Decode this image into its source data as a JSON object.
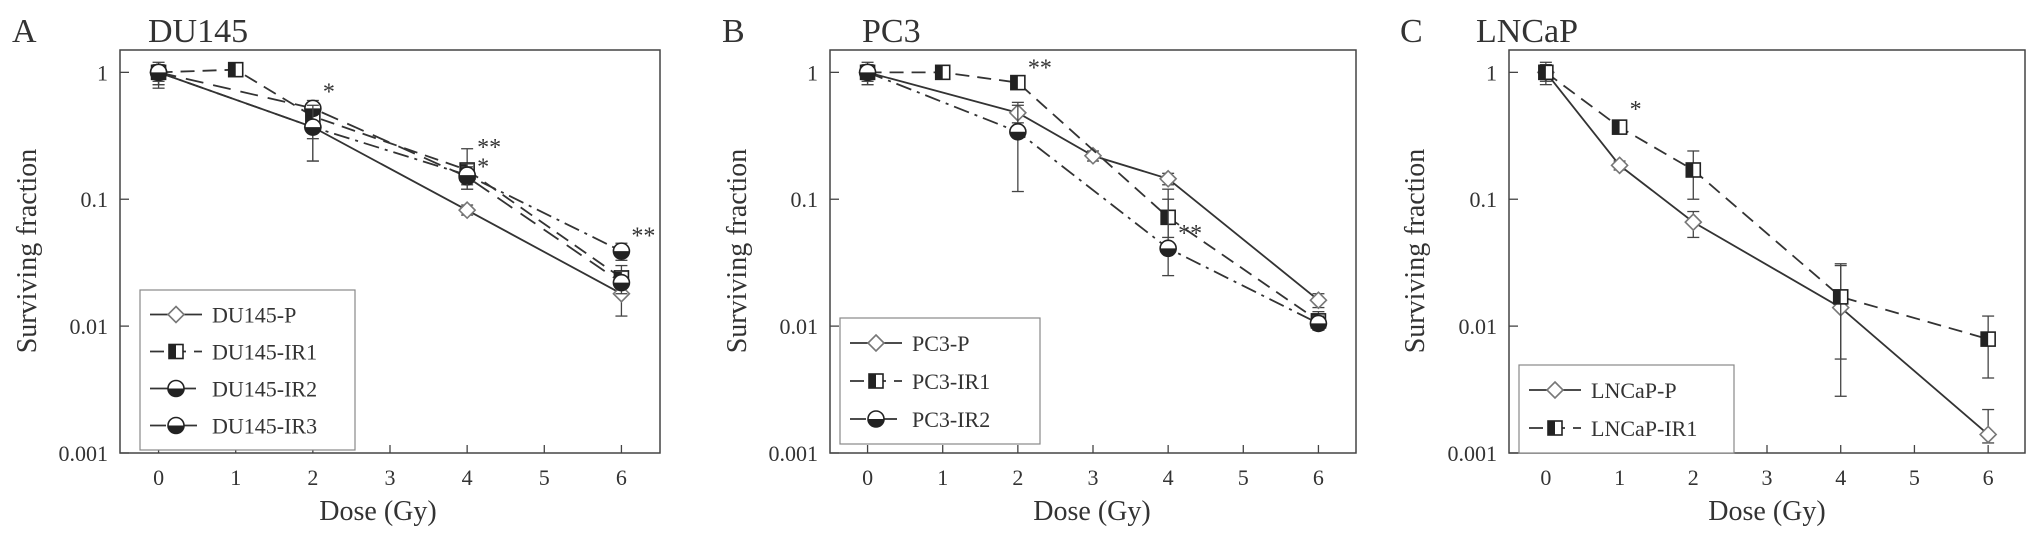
{
  "chart_data": [
    {
      "type": "line",
      "panel_letter": "A",
      "title": "DU145",
      "xlabel": "Dose (Gy)",
      "ylabel": "Surviving fraction",
      "xlim": [
        -0.5,
        6.5
      ],
      "ylim": [
        0.001,
        1.5
      ],
      "y_scale": "log",
      "xticks": [
        "0",
        "1",
        "2",
        "3",
        "4",
        "5",
        "6"
      ],
      "yticks": [
        "0.001",
        "0.01",
        "0.1",
        "1"
      ],
      "legend_position": "bottom-left",
      "annotations": [
        {
          "x": 2,
          "y": 0.55,
          "text": "*"
        },
        {
          "x": 4,
          "y": 0.2,
          "text": "**"
        },
        {
          "x": 4,
          "y": 0.14,
          "text": "*"
        },
        {
          "x": 6,
          "y": 0.04,
          "text": "**"
        }
      ],
      "series": [
        {
          "name": "DU145-P",
          "marker": "diamond",
          "dash": "solid",
          "x": [
            0,
            2,
            4,
            6
          ],
          "y": [
            1.0,
            0.37,
            0.082,
            0.018
          ],
          "err_lo": [
            0.75,
            0.3,
            0.075,
            0.012
          ],
          "err_hi": [
            1.2,
            0.45,
            0.09,
            0.022
          ]
        },
        {
          "name": "DU145-IR1",
          "marker": "half-square",
          "dash": "dash",
          "x": [
            0,
            1,
            2,
            4,
            6
          ],
          "y": [
            1.0,
            1.05,
            0.45,
            0.17,
            0.024
          ],
          "err_lo": [
            0.85,
            0.95,
            0.38,
            0.12,
            0.02
          ],
          "err_hi": [
            1.15,
            1.12,
            0.5,
            0.25,
            0.03
          ]
        },
        {
          "name": "DU145-IR2",
          "marker": "half-circle",
          "dash": "longdash",
          "x": [
            0,
            2,
            4,
            6
          ],
          "y": [
            1.0,
            0.52,
            0.15,
            0.022
          ],
          "err_lo": [
            0.8,
            0.2,
            0.13,
            0.018
          ],
          "err_hi": [
            1.15,
            0.6,
            0.18,
            0.027
          ]
        },
        {
          "name": "DU145-IR3",
          "marker": "half-circle",
          "dash": "dashdot",
          "x": [
            0,
            2,
            4,
            6
          ],
          "y": [
            1.0,
            0.37,
            0.155,
            0.039
          ],
          "err_lo": [
            0.8,
            0.2,
            0.12,
            0.033
          ],
          "err_hi": [
            1.15,
            0.55,
            0.19,
            0.045
          ]
        }
      ]
    },
    {
      "type": "line",
      "panel_letter": "B",
      "title": "PC3",
      "xlabel": "Dose (Gy)",
      "ylabel": "Surviving fraction",
      "xlim": [
        -0.5,
        6.5
      ],
      "ylim": [
        0.001,
        1.5
      ],
      "y_scale": "log",
      "xticks": [
        "0",
        "1",
        "2",
        "3",
        "4",
        "5",
        "6"
      ],
      "yticks": [
        "0.001",
        "0.01",
        "0.1",
        "1"
      ],
      "legend_position": "bottom-left",
      "annotations": [
        {
          "x": 2,
          "y": 0.85,
          "text": "**"
        },
        {
          "x": 4,
          "y": 0.042,
          "text": "**"
        }
      ],
      "series": [
        {
          "name": "PC3-P",
          "marker": "diamond",
          "dash": "solid",
          "x": [
            0,
            2,
            3,
            4,
            6
          ],
          "y": [
            1.0,
            0.48,
            0.22,
            0.145,
            0.016
          ],
          "err_lo": [
            0.8,
            0.4,
            0.2,
            0.13,
            0.014
          ],
          "err_hi": [
            1.2,
            0.58,
            0.24,
            0.16,
            0.018
          ]
        },
        {
          "name": "PC3-IR1",
          "marker": "half-square",
          "dash": "dash",
          "x": [
            0,
            1,
            2,
            4,
            6
          ],
          "y": [
            1.0,
            1.0,
            0.83,
            0.072,
            0.011
          ],
          "err_lo": [
            0.85,
            0.92,
            0.75,
            0.05,
            0.0095
          ],
          "err_hi": [
            1.15,
            1.08,
            0.92,
            0.1,
            0.013
          ]
        },
        {
          "name": "PC3-IR2",
          "marker": "half-circle",
          "dash": "dashdot",
          "x": [
            0,
            2,
            4,
            6
          ],
          "y": [
            1.0,
            0.34,
            0.041,
            0.0105
          ],
          "err_lo": [
            0.8,
            0.115,
            0.025,
            0.0093
          ],
          "err_hi": [
            1.15,
            0.55,
            0.12,
            0.012
          ]
        }
      ]
    },
    {
      "type": "line",
      "panel_letter": "C",
      "title": "LNCaP",
      "xlabel": "Dose (Gy)",
      "ylabel": "Surviving fraction",
      "xlim": [
        -0.5,
        6.5
      ],
      "ylim": [
        0.001,
        1.5
      ],
      "y_scale": "log",
      "xticks": [
        "0",
        "1",
        "2",
        "3",
        "4",
        "5",
        "6"
      ],
      "yticks": [
        "0.001",
        "0.01",
        "0.1",
        "1"
      ],
      "legend_position": "bottom-left",
      "annotations": [
        {
          "x": 1,
          "y": 0.4,
          "text": "*"
        }
      ],
      "series": [
        {
          "name": "LNCaP-P",
          "marker": "diamond",
          "dash": "solid",
          "x": [
            0,
            1,
            2,
            4,
            6
          ],
          "y": [
            1.0,
            0.185,
            0.066,
            0.014,
            0.0014
          ],
          "err_lo": [
            0.8,
            0.17,
            0.05,
            0.0055,
            0.0012
          ],
          "err_hi": [
            1.2,
            0.2,
            0.08,
            0.03,
            0.0022
          ]
        },
        {
          "name": "LNCaP-IR1",
          "marker": "half-square",
          "dash": "dash",
          "x": [
            0,
            1,
            2,
            4,
            6
          ],
          "y": [
            1.0,
            0.37,
            0.17,
            0.017,
            0.0079
          ],
          "err_lo": [
            0.85,
            0.34,
            0.1,
            0.0028,
            0.0039
          ],
          "err_hi": [
            1.15,
            0.4,
            0.24,
            0.031,
            0.012
          ]
        }
      ]
    }
  ]
}
